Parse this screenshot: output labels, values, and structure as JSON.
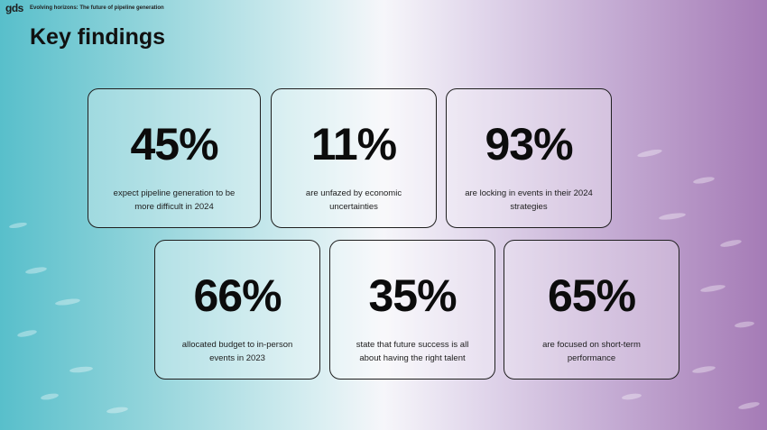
{
  "header": {
    "logo": "gds",
    "subtitle": "Evolving horizons: The future of pipeline generation"
  },
  "title": "Key findings",
  "findings": [
    {
      "stat": "45%",
      "description": "expect pipeline generation to be more difficult in 2024"
    },
    {
      "stat": "11%",
      "description": "are unfazed by economic uncertainties"
    },
    {
      "stat": "93%",
      "description": "are locking in events in their 2024 strategies"
    },
    {
      "stat": "66%",
      "description": "allocated budget to in-person events in 2023"
    },
    {
      "stat": "35%",
      "description": "state that future success is all about having the right talent"
    },
    {
      "stat": "65%",
      "description": "are focused on short-term performance"
    }
  ],
  "colors": {
    "teal": "#58bfcb",
    "lavender": "#a57bb6",
    "card_border": "#1f1f1f"
  }
}
